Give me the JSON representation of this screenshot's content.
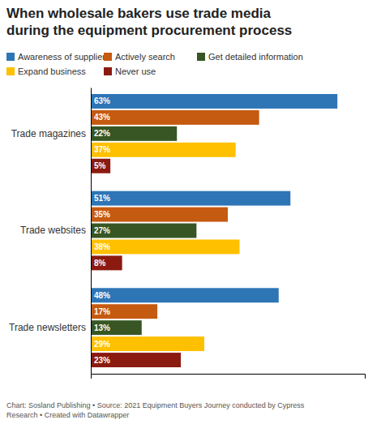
{
  "chart_data": {
    "type": "bar",
    "orientation": "horizontal",
    "title": "When wholesale bakers use trade media\nduring the equipment procurement process",
    "categories": [
      "Trade magazines",
      "Trade websites",
      "Trade newsletters"
    ],
    "series": [
      {
        "name": "Awareness of suppliers",
        "color": "#2e75b6",
        "values": [
          63,
          51,
          48
        ],
        "value_labels": [
          "63%",
          "51%",
          "48%"
        ]
      },
      {
        "name": "Actively search",
        "color": "#c55a11",
        "values": [
          43,
          35,
          17
        ],
        "value_labels": [
          "43%",
          "35%",
          "17%"
        ]
      },
      {
        "name": "Get detailed information",
        "color": "#375623",
        "values": [
          22,
          27,
          13
        ],
        "value_labels": [
          "22%",
          "27%",
          "13%"
        ]
      },
      {
        "name": "Expand business",
        "color": "#ffc000",
        "values": [
          37,
          38,
          29
        ],
        "value_labels": [
          "37%",
          "38%",
          "29%"
        ]
      },
      {
        "name": "Never use",
        "color": "#8b1a10",
        "values": [
          5,
          8,
          23
        ],
        "value_labels": [
          "5%",
          "8%",
          "23%"
        ]
      }
    ],
    "xlim": [
      0,
      70
    ],
    "data_labels": true,
    "tick_labels": "y",
    "grid": false,
    "legend": "top",
    "annotations": [
      "Chart: Sosland Publishing • Source: 2021 Equipment Buyers Journey conducted by Cypress\nResearch • Created with Datawrapper"
    ]
  }
}
